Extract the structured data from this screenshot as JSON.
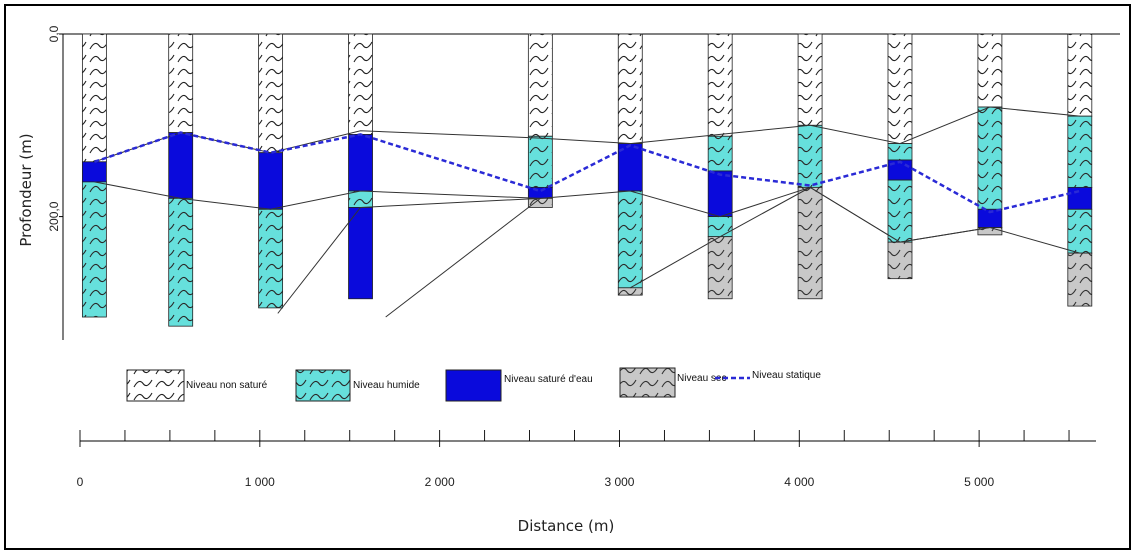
{
  "chart_data": {
    "type": "well-log cross-section",
    "xlabel": "Distance (m)",
    "ylabel": "Profondeur (m)",
    "y_ticks": [
      {
        "value": 0,
        "label": "0,0"
      },
      {
        "value": 200,
        "label": "200,0"
      }
    ],
    "x_ticks": [
      {
        "value": 0,
        "label": "0"
      },
      {
        "value": 1000,
        "label": "1 000"
      },
      {
        "value": 2000,
        "label": "2 000"
      },
      {
        "value": 3000,
        "label": "3 000"
      },
      {
        "value": 4000,
        "label": "4 000"
      },
      {
        "value": 5000,
        "label": "5 000"
      }
    ],
    "xlim": [
      0,
      5650
    ],
    "ylim": [
      0,
      330
    ],
    "legend": [
      {
        "key": "non_sature",
        "label": "Niveau non saturé"
      },
      {
        "key": "humide",
        "label": "Niveau humide"
      },
      {
        "key": "sature",
        "label": "Niveau saturé  d'eau"
      },
      {
        "key": "sec",
        "label": "Niveau sec"
      },
      {
        "key": "statique",
        "label": "Niveau statique"
      }
    ],
    "colors": {
      "non_sature": "#ffffff",
      "humide": "#66e0dc",
      "sature": "#0a0adc",
      "sec": "#c8c8c8",
      "statique": "#2a2ad6",
      "outline": "#222222"
    },
    "wells": [
      {
        "x": 80,
        "layers": [
          {
            "type": "non_sature",
            "top": 0,
            "bottom": 140
          },
          {
            "type": "sature",
            "top": 140,
            "bottom": 162
          },
          {
            "type": "humide",
            "top": 162,
            "bottom": 310
          }
        ]
      },
      {
        "x": 560,
        "layers": [
          {
            "type": "non_sature",
            "top": 0,
            "bottom": 108
          },
          {
            "type": "sature",
            "top": 108,
            "bottom": 180
          },
          {
            "type": "humide",
            "top": 180,
            "bottom": 320
          }
        ]
      },
      {
        "x": 1060,
        "layers": [
          {
            "type": "non_sature",
            "top": 0,
            "bottom": 130
          },
          {
            "type": "sature",
            "top": 130,
            "bottom": 192
          },
          {
            "type": "humide",
            "top": 192,
            "bottom": 300
          }
        ]
      },
      {
        "x": 1560,
        "layers": [
          {
            "type": "non_sature",
            "top": 0,
            "bottom": 110
          },
          {
            "type": "sature",
            "top": 110,
            "bottom": 172
          },
          {
            "type": "humide",
            "top": 172,
            "bottom": 190
          },
          {
            "type": "sature",
            "top": 190,
            "bottom": 290
          }
        ]
      },
      {
        "x": 2560,
        "layers": [
          {
            "type": "non_sature",
            "top": 0,
            "bottom": 112
          },
          {
            "type": "humide",
            "top": 112,
            "bottom": 168
          },
          {
            "type": "sature",
            "top": 168,
            "bottom": 180
          },
          {
            "type": "sec",
            "top": 180,
            "bottom": 190
          }
        ]
      },
      {
        "x": 3060,
        "layers": [
          {
            "type": "non_sature",
            "top": 0,
            "bottom": 120
          },
          {
            "type": "sature",
            "top": 120,
            "bottom": 172
          },
          {
            "type": "humide",
            "top": 172,
            "bottom": 278
          },
          {
            "type": "sec",
            "top": 278,
            "bottom": 286
          }
        ]
      },
      {
        "x": 3560,
        "layers": [
          {
            "type": "non_sature",
            "top": 0,
            "bottom": 112
          },
          {
            "type": "humide",
            "top": 112,
            "bottom": 150
          },
          {
            "type": "sature",
            "top": 150,
            "bottom": 200
          },
          {
            "type": "humide",
            "top": 200,
            "bottom": 222
          },
          {
            "type": "sec",
            "top": 222,
            "bottom": 290
          }
        ]
      },
      {
        "x": 4060,
        "layers": [
          {
            "type": "non_sature",
            "top": 0,
            "bottom": 100
          },
          {
            "type": "humide",
            "top": 100,
            "bottom": 168
          },
          {
            "type": "sec",
            "top": 168,
            "bottom": 290
          }
        ]
      },
      {
        "x": 4560,
        "layers": [
          {
            "type": "non_sature",
            "top": 0,
            "bottom": 120
          },
          {
            "type": "humide",
            "top": 120,
            "bottom": 138
          },
          {
            "type": "sature",
            "top": 138,
            "bottom": 160
          },
          {
            "type": "humide",
            "top": 160,
            "bottom": 228
          },
          {
            "type": "sec",
            "top": 228,
            "bottom": 268
          }
        ]
      },
      {
        "x": 5060,
        "layers": [
          {
            "type": "non_sature",
            "top": 0,
            "bottom": 80
          },
          {
            "type": "humide",
            "top": 80,
            "bottom": 192
          },
          {
            "type": "sature",
            "top": 192,
            "bottom": 212
          },
          {
            "type": "sec",
            "top": 212,
            "bottom": 220
          }
        ]
      },
      {
        "x": 5560,
        "layers": [
          {
            "type": "non_sature",
            "top": 0,
            "bottom": 90
          },
          {
            "type": "humide",
            "top": 90,
            "bottom": 168
          },
          {
            "type": "sature",
            "top": 168,
            "bottom": 192
          },
          {
            "type": "humide",
            "top": 192,
            "bottom": 240
          },
          {
            "type": "sec",
            "top": 240,
            "bottom": 298
          }
        ]
      }
    ],
    "static_level": [
      [
        80,
        140
      ],
      [
        560,
        108
      ],
      [
        1060,
        130
      ],
      [
        1560,
        110
      ],
      [
        2560,
        172
      ],
      [
        3060,
        122
      ],
      [
        3560,
        154
      ],
      [
        4060,
        166
      ],
      [
        4560,
        140
      ],
      [
        5060,
        195
      ],
      [
        5560,
        172
      ]
    ],
    "boundary_lines": [
      [
        [
          80,
          140
        ],
        [
          560,
          108
        ],
        [
          1060,
          130
        ],
        [
          1560,
          106
        ],
        [
          2560,
          114
        ],
        [
          3060,
          120
        ],
        [
          3560,
          110
        ],
        [
          4060,
          100
        ],
        [
          4560,
          120
        ],
        [
          5060,
          80
        ],
        [
          5560,
          90
        ]
      ],
      [
        [
          80,
          162
        ],
        [
          560,
          180
        ],
        [
          1060,
          192
        ],
        [
          1560,
          172
        ],
        [
          2560,
          180
        ],
        [
          3060,
          172
        ],
        [
          3560,
          200
        ],
        [
          4060,
          168
        ],
        [
          4560,
          228
        ],
        [
          5060,
          212
        ],
        [
          5560,
          240
        ]
      ],
      [
        [
          1560,
          190
        ],
        [
          2560,
          180
        ]
      ],
      [
        [
          1100,
          306
        ],
        [
          1560,
          190
        ]
      ],
      [
        [
          1700,
          310
        ],
        [
          2560,
          180
        ]
      ],
      [
        [
          3060,
          278
        ],
        [
          3560,
          222
        ],
        [
          4060,
          168
        ],
        [
          4560,
          228
        ],
        [
          5060,
          212
        ]
      ]
    ]
  }
}
